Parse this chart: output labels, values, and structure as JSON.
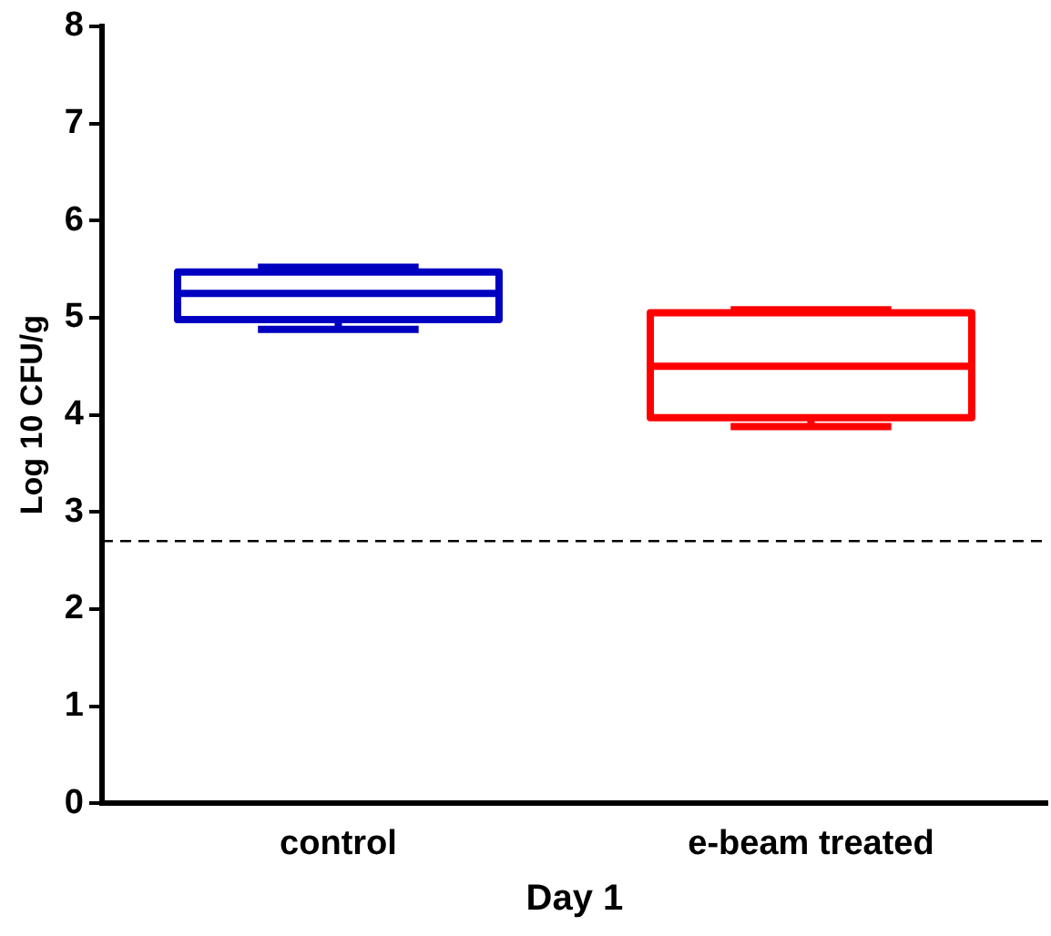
{
  "chart_data": {
    "type": "box",
    "xlabel": "Day 1",
    "ylabel": "Log 10 CFU/g",
    "categories": [
      "control",
      "e-beam treated"
    ],
    "colors": [
      "#0000c0",
      "#ff0000"
    ],
    "boxes": [
      {
        "low": 4.88,
        "q1": 4.98,
        "median": 5.25,
        "q3": 5.47,
        "high": 5.52
      },
      {
        "low": 3.88,
        "q1": 3.97,
        "median": 4.5,
        "q3": 5.05,
        "high": 5.08
      }
    ],
    "ylim": [
      0,
      8
    ],
    "yticks": [
      0,
      1,
      2,
      3,
      4,
      5,
      6,
      7,
      8
    ],
    "ref_lines": [
      {
        "axis": "y",
        "value": 2.7,
        "color": "#000000",
        "line_style": "dashed"
      }
    ]
  }
}
